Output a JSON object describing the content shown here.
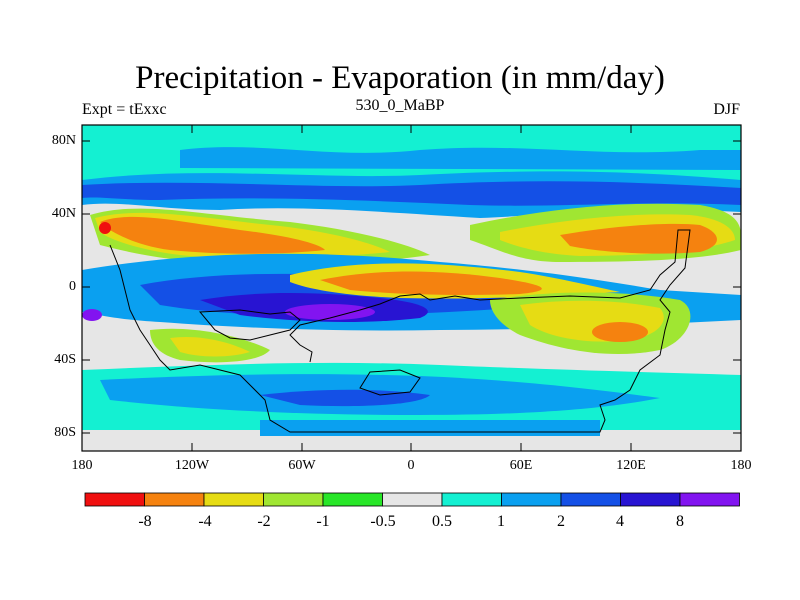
{
  "title": "Precipitation - Evaporation (in mm/day)",
  "subtitle_left": "Expt = tExxc",
  "subtitle_center": "530_0_MaBP",
  "subtitle_right": "DJF",
  "y_axis_labels": [
    "80N",
    "40N",
    "0",
    "40S",
    "80S"
  ],
  "x_axis_labels": [
    "180",
    "120W",
    "60W",
    "0",
    "60E",
    "120E",
    "180"
  ],
  "colorbar": {
    "colors": [
      "#f00f0f",
      "#f5820f",
      "#e6dc14",
      "#a0e632",
      "#28e628",
      "#e6e6e6",
      "#14f0d2",
      "#0aa0f0",
      "#1450e6",
      "#2814d2",
      "#8214f0"
    ],
    "labels": [
      "-8",
      "-4",
      "-2",
      "-1",
      "-0.5",
      "0.5",
      "1",
      "2",
      "4",
      "8"
    ]
  },
  "chart_data": {
    "type": "heatmap",
    "title": "Precipitation - Evaporation (in mm/day)",
    "units": "mm/day",
    "x_range": [
      -180,
      180
    ],
    "y_range": [
      -90,
      90
    ],
    "x_ticks": [
      -180,
      -120,
      -60,
      0,
      60,
      120,
      180
    ],
    "y_ticks": [
      80,
      40,
      0,
      -40,
      -80
    ],
    "levels": [
      -8,
      -4,
      -2,
      -1,
      -0.5,
      0.5,
      1,
      2,
      4,
      8
    ]
  }
}
